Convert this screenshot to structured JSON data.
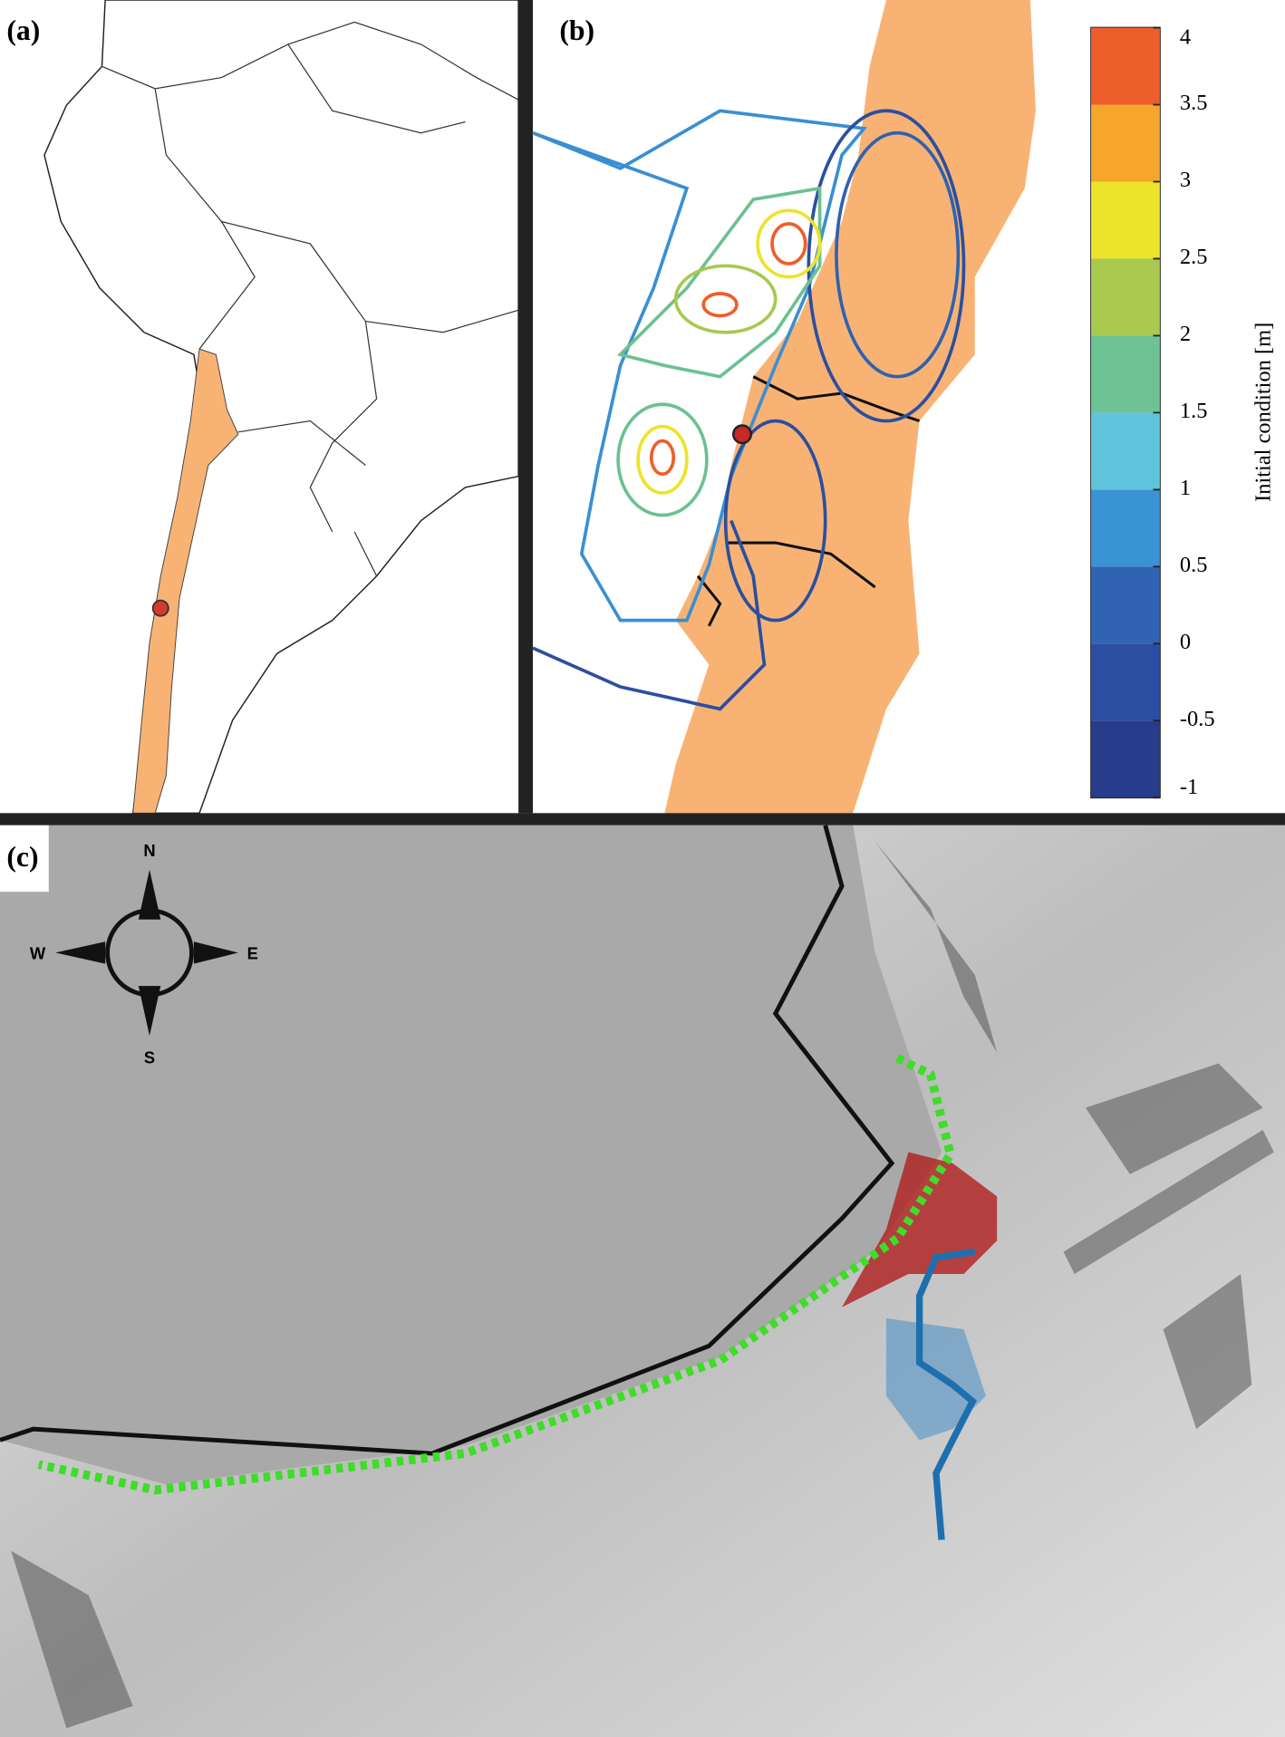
{
  "panels": {
    "a": {
      "label": "(a)"
    },
    "b": {
      "label": "(b)"
    },
    "c": {
      "label": "(c)"
    }
  },
  "colorbar": {
    "label": "Initial condition [m]",
    "lim": [
      -1,
      4
    ],
    "ticks": [
      -1,
      -0.5,
      0,
      0.5,
      1,
      1.5,
      2,
      2.5,
      3,
      3.5,
      4
    ],
    "colors": [
      "#283c8c",
      "#2b4ea2",
      "#3063b3",
      "#3a93d4",
      "#5fc3dc",
      "#6dc393",
      "#a9c94f",
      "#ebe42b",
      "#f6a62b",
      "#ee5e2b"
    ]
  },
  "compass": {
    "n": "N",
    "s": "S",
    "e": "E",
    "w": "W"
  }
}
